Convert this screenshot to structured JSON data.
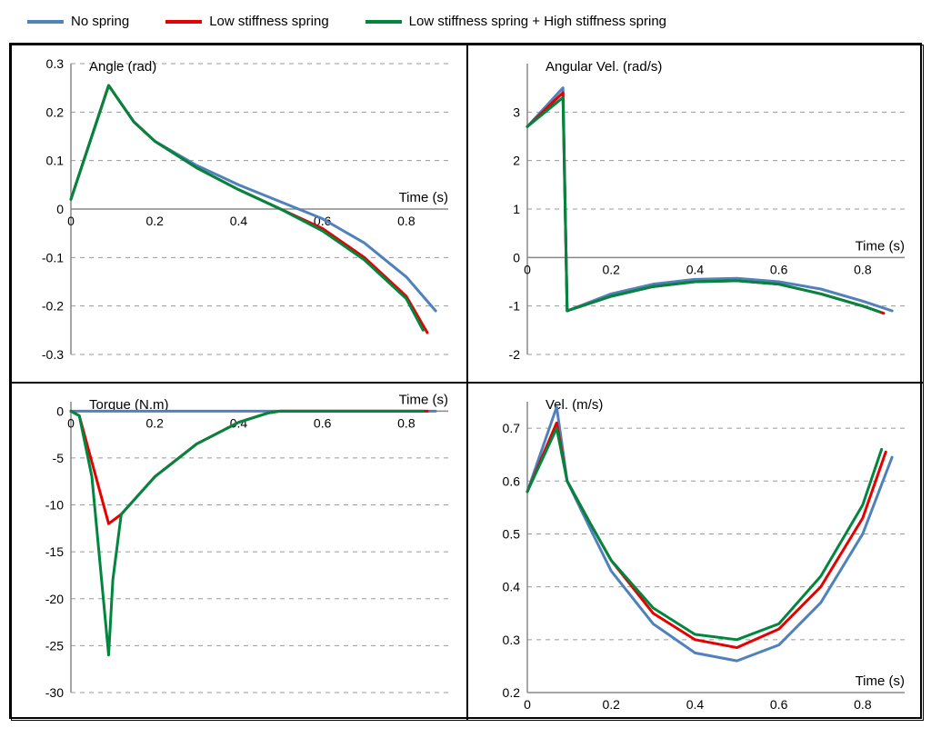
{
  "legend": {
    "items": [
      {
        "label": "No spring",
        "color": "#4f81bd"
      },
      {
        "label": "Low stiffness spring",
        "color": "#e60000"
      },
      {
        "label": "Low stiffness spring + High stiffness spring",
        "color": "#00863e"
      }
    ],
    "line_width": 4
  },
  "global": {
    "xlabel": "Time (s)",
    "xlim": [
      0,
      0.9
    ],
    "xticks": [
      0,
      0.2,
      0.4,
      0.6,
      0.8
    ],
    "background": "#ffffff",
    "grid_color": "#999999",
    "line_width": 3
  },
  "panels": {
    "angle": {
      "ylabel": "Angle (rad)",
      "ylim": [
        -0.3,
        0.3
      ],
      "yticks": [
        -0.3,
        -0.2,
        -0.1,
        0,
        0.1,
        0.2,
        0.3
      ],
      "series": [
        {
          "color": "#4f81bd",
          "data": [
            [
              0,
              0.02
            ],
            [
              0.09,
              0.255
            ],
            [
              0.15,
              0.18
            ],
            [
              0.2,
              0.14
            ],
            [
              0.3,
              0.09
            ],
            [
              0.4,
              0.05
            ],
            [
              0.5,
              0.015
            ],
            [
              0.6,
              -0.02
            ],
            [
              0.7,
              -0.07
            ],
            [
              0.8,
              -0.14
            ],
            [
              0.87,
              -0.21
            ]
          ]
        },
        {
          "color": "#e60000",
          "data": [
            [
              0,
              0.02
            ],
            [
              0.09,
              0.255
            ],
            [
              0.15,
              0.18
            ],
            [
              0.2,
              0.14
            ],
            [
              0.3,
              0.085
            ],
            [
              0.4,
              0.04
            ],
            [
              0.5,
              0.0
            ],
            [
              0.6,
              -0.04
            ],
            [
              0.7,
              -0.1
            ],
            [
              0.8,
              -0.18
            ],
            [
              0.85,
              -0.255
            ]
          ]
        },
        {
          "color": "#00863e",
          "data": [
            [
              0,
              0.02
            ],
            [
              0.09,
              0.255
            ],
            [
              0.15,
              0.18
            ],
            [
              0.2,
              0.14
            ],
            [
              0.3,
              0.085
            ],
            [
              0.4,
              0.04
            ],
            [
              0.5,
              0.0
            ],
            [
              0.6,
              -0.045
            ],
            [
              0.7,
              -0.105
            ],
            [
              0.8,
              -0.185
            ],
            [
              0.84,
              -0.25
            ]
          ]
        }
      ]
    },
    "angvel": {
      "ylabel": "Angular Vel. (rad/s)",
      "ylim": [
        -2,
        4
      ],
      "yticks": [
        -2,
        -1,
        0,
        1,
        2,
        3
      ],
      "series": [
        {
          "color": "#4f81bd",
          "data": [
            [
              0,
              2.7
            ],
            [
              0.085,
              3.5
            ],
            [
              0.095,
              -1.1
            ],
            [
              0.2,
              -0.75
            ],
            [
              0.3,
              -0.55
            ],
            [
              0.4,
              -0.45
            ],
            [
              0.5,
              -0.43
            ],
            [
              0.6,
              -0.5
            ],
            [
              0.7,
              -0.65
            ],
            [
              0.8,
              -0.9
            ],
            [
              0.87,
              -1.1
            ]
          ]
        },
        {
          "color": "#e60000",
          "data": [
            [
              0,
              2.7
            ],
            [
              0.085,
              3.4
            ],
            [
              0.095,
              -1.1
            ],
            [
              0.2,
              -0.8
            ],
            [
              0.3,
              -0.6
            ],
            [
              0.4,
              -0.5
            ],
            [
              0.5,
              -0.48
            ],
            [
              0.6,
              -0.55
            ],
            [
              0.7,
              -0.75
            ],
            [
              0.8,
              -1.0
            ],
            [
              0.85,
              -1.15
            ]
          ]
        },
        {
          "color": "#00863e",
          "data": [
            [
              0,
              2.7
            ],
            [
              0.085,
              3.3
            ],
            [
              0.095,
              -1.1
            ],
            [
              0.2,
              -0.8
            ],
            [
              0.3,
              -0.6
            ],
            [
              0.4,
              -0.5
            ],
            [
              0.5,
              -0.48
            ],
            [
              0.6,
              -0.55
            ],
            [
              0.7,
              -0.75
            ],
            [
              0.8,
              -1.0
            ],
            [
              0.84,
              -1.12
            ]
          ]
        }
      ]
    },
    "torque": {
      "ylabel": "Torque (N.m)",
      "ylim": [
        -30,
        1
      ],
      "yticks": [
        -30,
        -25,
        -20,
        -15,
        -10,
        -5,
        0
      ],
      "series": [
        {
          "color": "#4f81bd",
          "data": [
            [
              0,
              0
            ],
            [
              0.87,
              0
            ]
          ]
        },
        {
          "color": "#e60000",
          "data": [
            [
              0,
              0
            ],
            [
              0.02,
              -0.5
            ],
            [
              0.09,
              -12
            ],
            [
              0.12,
              -11
            ],
            [
              0.2,
              -7
            ],
            [
              0.3,
              -3.5
            ],
            [
              0.4,
              -1.2
            ],
            [
              0.47,
              -0.2
            ],
            [
              0.5,
              0
            ],
            [
              0.85,
              0
            ]
          ]
        },
        {
          "color": "#00863e",
          "data": [
            [
              0,
              0
            ],
            [
              0.02,
              -0.5
            ],
            [
              0.05,
              -7
            ],
            [
              0.09,
              -26
            ],
            [
              0.1,
              -18
            ],
            [
              0.12,
              -11
            ],
            [
              0.2,
              -7
            ],
            [
              0.3,
              -3.5
            ],
            [
              0.4,
              -1.2
            ],
            [
              0.47,
              -0.2
            ],
            [
              0.5,
              0
            ],
            [
              0.84,
              0
            ]
          ]
        }
      ]
    },
    "vel": {
      "ylabel": "Vel. (m/s)",
      "ylim": [
        0.2,
        0.75
      ],
      "yticks": [
        0.2,
        0.3,
        0.4,
        0.5,
        0.6,
        0.7
      ],
      "series": [
        {
          "color": "#4f81bd",
          "data": [
            [
              0,
              0.58
            ],
            [
              0.07,
              0.74
            ],
            [
              0.095,
              0.6
            ],
            [
              0.15,
              0.51
            ],
            [
              0.2,
              0.43
            ],
            [
              0.3,
              0.33
            ],
            [
              0.4,
              0.275
            ],
            [
              0.5,
              0.26
            ],
            [
              0.6,
              0.29
            ],
            [
              0.7,
              0.37
            ],
            [
              0.8,
              0.5
            ],
            [
              0.87,
              0.645
            ]
          ]
        },
        {
          "color": "#e60000",
          "data": [
            [
              0,
              0.58
            ],
            [
              0.07,
              0.71
            ],
            [
              0.095,
              0.6
            ],
            [
              0.15,
              0.52
            ],
            [
              0.2,
              0.45
            ],
            [
              0.3,
              0.35
            ],
            [
              0.4,
              0.3
            ],
            [
              0.5,
              0.285
            ],
            [
              0.6,
              0.32
            ],
            [
              0.7,
              0.4
            ],
            [
              0.8,
              0.53
            ],
            [
              0.855,
              0.655
            ]
          ]
        },
        {
          "color": "#00863e",
          "data": [
            [
              0,
              0.58
            ],
            [
              0.07,
              0.7
            ],
            [
              0.095,
              0.6
            ],
            [
              0.15,
              0.52
            ],
            [
              0.2,
              0.45
            ],
            [
              0.3,
              0.36
            ],
            [
              0.4,
              0.31
            ],
            [
              0.5,
              0.3
            ],
            [
              0.6,
              0.33
            ],
            [
              0.7,
              0.42
            ],
            [
              0.8,
              0.555
            ],
            [
              0.845,
              0.66
            ]
          ]
        }
      ]
    }
  }
}
